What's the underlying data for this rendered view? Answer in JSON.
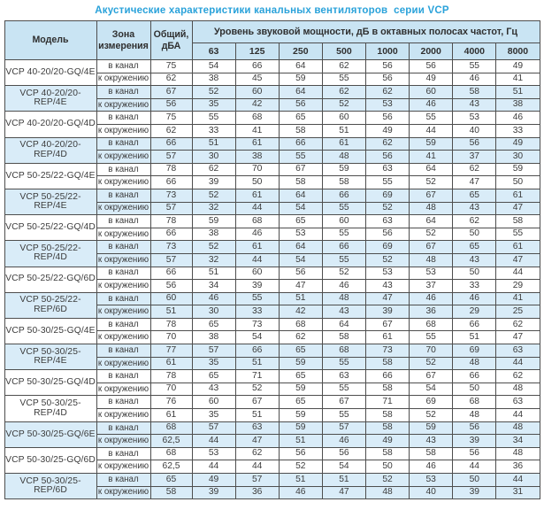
{
  "title": "Акустические характеристики канальных вентиляторов  серии VCP",
  "colors": {
    "title_blue": "#2aa2da",
    "header_bg": "#c9e4f3",
    "shaded_row_bg": "#d9ecf8",
    "border": "#4e4e4e",
    "text": "#3c3c3c"
  },
  "table": {
    "col_model": "Модель",
    "col_zone": "Зона измерения",
    "col_total": "Общий, дБА",
    "col_spectrum": "Уровень звуковой мощности, дБ в октавных полосах частот, Гц",
    "frequencies": [
      "63",
      "125",
      "250",
      "500",
      "1000",
      "2000",
      "4000",
      "8000"
    ],
    "models": [
      {
        "name": "VCP 40-20/20-GQ/4E",
        "shaded": false,
        "rows": [
          {
            "zone": "в канал",
            "total": "75",
            "levels": [
              54,
              66,
              64,
              62,
              56,
              56,
              55,
              49
            ]
          },
          {
            "zone": "к окружению",
            "total": "62",
            "levels": [
              38,
              45,
              59,
              55,
              56,
              49,
              46,
              41
            ]
          }
        ]
      },
      {
        "name": "VCP 40-20/20-REP/4E",
        "shaded": true,
        "rows": [
          {
            "zone": "в канал",
            "total": "67",
            "levels": [
              52,
              60,
              64,
              62,
              62,
              60,
              58,
              51
            ]
          },
          {
            "zone": "к окружению",
            "total": "56",
            "levels": [
              35,
              42,
              56,
              52,
              53,
              46,
              43,
              38
            ]
          }
        ]
      },
      {
        "name": "VCP 40-20/20-GQ/4D",
        "shaded": false,
        "rows": [
          {
            "zone": "в канал",
            "total": "75",
            "levels": [
              55,
              68,
              65,
              60,
              56,
              55,
              53,
              46
            ]
          },
          {
            "zone": "к окружению",
            "total": "62",
            "levels": [
              33,
              41,
              58,
              51,
              49,
              44,
              40,
              33
            ]
          }
        ]
      },
      {
        "name": "VCP 40-20/20-REP/4D",
        "shaded": true,
        "rows": [
          {
            "zone": "в канал",
            "total": "66",
            "levels": [
              51,
              61,
              66,
              61,
              62,
              59,
              56,
              49
            ]
          },
          {
            "zone": "к окружению",
            "total": "57",
            "levels": [
              30,
              38,
              55,
              48,
              56,
              41,
              37,
              30
            ]
          }
        ]
      },
      {
        "name": "VCP 50-25/22-GQ/4E",
        "shaded": false,
        "rows": [
          {
            "zone": "в канал",
            "total": "78",
            "levels": [
              62,
              70,
              67,
              59,
              63,
              64,
              62,
              59
            ]
          },
          {
            "zone": "к окружению",
            "total": "66",
            "levels": [
              39,
              50,
              58,
              58,
              55,
              52,
              47,
              50
            ]
          }
        ]
      },
      {
        "name": "VCP 50-25/22-REP/4E",
        "shaded": true,
        "rows": [
          {
            "zone": "в канал",
            "total": "73",
            "levels": [
              52,
              61,
              64,
              66,
              69,
              67,
              65,
              61
            ]
          },
          {
            "zone": "к окружению",
            "total": "57",
            "levels": [
              32,
              44,
              54,
              55,
              52,
              48,
              43,
              47
            ]
          }
        ]
      },
      {
        "name": "VCP 50-25/22-GQ/4D",
        "shaded": false,
        "rows": [
          {
            "zone": "в канал",
            "total": "78",
            "levels": [
              59,
              68,
              65,
              60,
              63,
              64,
              62,
              58
            ]
          },
          {
            "zone": "к окружению",
            "total": "66",
            "levels": [
              38,
              46,
              53,
              55,
              56,
              52,
              50,
              55
            ]
          }
        ]
      },
      {
        "name": "VCP 50-25/22-REP/4D",
        "shaded": true,
        "rows": [
          {
            "zone": "в канал",
            "total": "73",
            "levels": [
              52,
              61,
              64,
              66,
              69,
              67,
              65,
              61
            ]
          },
          {
            "zone": "к окружению",
            "total": "57",
            "levels": [
              32,
              44,
              54,
              55,
              52,
              48,
              43,
              47
            ]
          }
        ]
      },
      {
        "name": "VCP 50-25/22-GQ/6D",
        "shaded": false,
        "rows": [
          {
            "zone": "в канал",
            "total": "66",
            "levels": [
              51,
              60,
              56,
              52,
              53,
              53,
              50,
              44
            ]
          },
          {
            "zone": "к окружению",
            "total": "56",
            "levels": [
              34,
              39,
              47,
              46,
              43,
              37,
              33,
              29
            ]
          }
        ]
      },
      {
        "name": "VCP 50-25/22-REP/6D",
        "shaded": true,
        "rows": [
          {
            "zone": "в канал",
            "total": "60",
            "levels": [
              46,
              55,
              51,
              48,
              47,
              46,
              46,
              41
            ]
          },
          {
            "zone": "к окружению",
            "total": "51",
            "levels": [
              30,
              33,
              42,
              43,
              39,
              36,
              29,
              25
            ]
          }
        ]
      },
      {
        "name": "VCP 50-30/25-GQ/4E",
        "shaded": false,
        "rows": [
          {
            "zone": "в канал",
            "total": "78",
            "levels": [
              65,
              73,
              68,
              64,
              67,
              68,
              66,
              62
            ]
          },
          {
            "zone": "к окружению",
            "total": "70",
            "levels": [
              38,
              54,
              62,
              58,
              61,
              55,
              51,
              47
            ]
          }
        ]
      },
      {
        "name": "VCP 50-30/25-REP/4E",
        "shaded": true,
        "rows": [
          {
            "zone": "в канал",
            "total": "77",
            "levels": [
              57,
              66,
              65,
              68,
              73,
              70,
              69,
              63
            ]
          },
          {
            "zone": "к окружению",
            "total": "61",
            "levels": [
              35,
              51,
              59,
              55,
              58,
              52,
              48,
              44
            ]
          }
        ]
      },
      {
        "name": "VCP 50-30/25-GQ/4D",
        "shaded": false,
        "rows": [
          {
            "zone": "в канал",
            "total": "78",
            "levels": [
              65,
              71,
              65,
              63,
              66,
              67,
              66,
              62
            ]
          },
          {
            "zone": "к окружению",
            "total": "70",
            "levels": [
              43,
              52,
              59,
              55,
              58,
              54,
              50,
              48
            ]
          }
        ]
      },
      {
        "name": "VCP 50-30/25-REP/4D",
        "shaded": false,
        "rows": [
          {
            "zone": "в канал",
            "total": "76",
            "levels": [
              60,
              67,
              65,
              67,
              71,
              69,
              68,
              63
            ]
          },
          {
            "zone": "к окружению",
            "total": "61",
            "levels": [
              35,
              51,
              59,
              55,
              58,
              52,
              48,
              44
            ]
          }
        ]
      },
      {
        "name": "VCP 50-30/25-GQ/6E",
        "shaded": true,
        "rows": [
          {
            "zone": "в канал",
            "total": "68",
            "levels": [
              57,
              63,
              59,
              57,
              58,
              59,
              56,
              48
            ]
          },
          {
            "zone": "к окружению",
            "total": "62,5",
            "levels": [
              44,
              47,
              51,
              46,
              49,
              43,
              39,
              34
            ]
          }
        ]
      },
      {
        "name": "VCP 50-30/25-GQ/6D",
        "shaded": false,
        "rows": [
          {
            "zone": "в канал",
            "total": "68",
            "levels": [
              53,
              62,
              56,
              56,
              58,
              58,
              56,
              48
            ]
          },
          {
            "zone": "к окружению",
            "total": "62,5",
            "levels": [
              44,
              44,
              52,
              54,
              50,
              46,
              44,
              36
            ]
          }
        ]
      },
      {
        "name": "VCP 50-30/25-REP/6D",
        "shaded": true,
        "rows": [
          {
            "zone": "в канал",
            "total": "65",
            "levels": [
              49,
              57,
              51,
              51,
              52,
              53,
              50,
              44
            ]
          },
          {
            "zone": "к окружению",
            "total": "58",
            "levels": [
              39,
              36,
              46,
              47,
              48,
              40,
              39,
              31
            ]
          }
        ]
      }
    ]
  }
}
